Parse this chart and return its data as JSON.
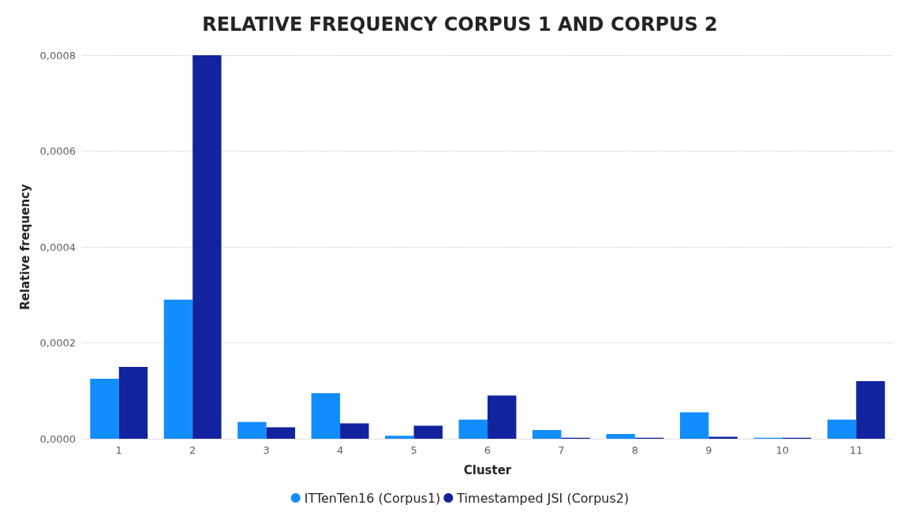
{
  "chart_data": {
    "type": "bar",
    "title": "RELATIVE FREQUENCY CORPUS 1 AND CORPUS 2",
    "xlabel": "Cluster",
    "ylabel": "Relative frequency",
    "categories": [
      "1",
      "2",
      "3",
      "4",
      "5",
      "6",
      "7",
      "8",
      "9",
      "10",
      "11"
    ],
    "series": [
      {
        "name": "ITTenTen16 (Corpus1)",
        "color": "#118dff",
        "values": [
          0.000125,
          0.00029,
          3.5e-05,
          9.5e-05,
          6e-06,
          4e-05,
          1.8e-05,
          1e-05,
          5.5e-05,
          2e-06,
          4e-05
        ]
      },
      {
        "name": "Timestamped JSI (Corpus2)",
        "color": "#12239e",
        "values": [
          0.00015,
          0.0008,
          2.4e-05,
          3.2e-05,
          2.7e-05,
          9e-05,
          2e-06,
          2e-06,
          4e-06,
          2e-06,
          0.00012
        ]
      }
    ],
    "ylim": [
      0,
      0.0008
    ],
    "yticks": [
      {
        "value": 0,
        "label": "0,0000"
      },
      {
        "value": 0.0002,
        "label": "0,0002"
      },
      {
        "value": 0.0004,
        "label": "0,0004"
      },
      {
        "value": 0.0006,
        "label": "0,0006"
      },
      {
        "value": 0.0008,
        "label": "0,0008"
      }
    ],
    "grid": "y",
    "legend": "bottom"
  }
}
